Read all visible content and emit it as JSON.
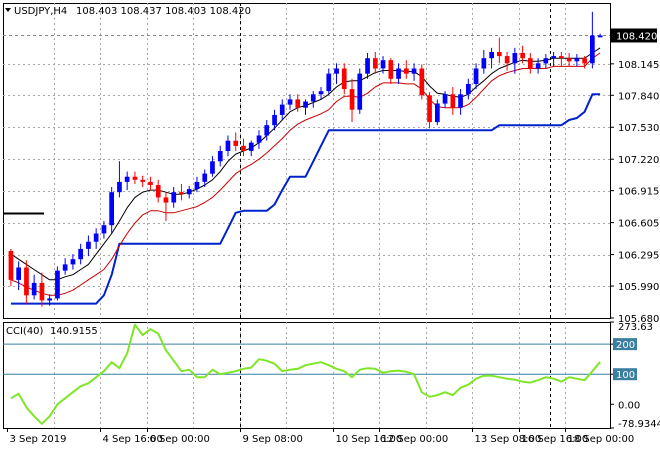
{
  "header": {
    "symbol_timeframe": "USDJPY,H4",
    "ohlc": "108.403 108.437 108.403 108.420"
  },
  "indicator": {
    "label": "CCI(40)",
    "value": "140.9155"
  },
  "colors": {
    "bull": "#0000ff",
    "bear": "#ff0000",
    "ma_black": "#000000",
    "ma_red": "#cc0000",
    "channel": "#0022cc",
    "cci": "#7fe627",
    "level": "#3a7fa0",
    "price_box": "#000000",
    "grid": "#a8a8a8"
  },
  "chart_data": [
    {
      "type": "candlestick",
      "current_price": "108.420",
      "ylim": [
        105.68,
        108.735
      ],
      "y_ticks": [
        "108.420",
        "108.145",
        "107.840",
        "107.530",
        "107.220",
        "106.915",
        "106.605",
        "106.295",
        "105.990",
        "105.680"
      ],
      "x_ticks": [
        "3 Sep 2019",
        "4 Sep 16:00",
        "6 Sep 00:00",
        "9 Sep 08:00",
        "10 Sep 16:00",
        "12 Sep 00:00",
        "13 Sep 08:00",
        "16 Sep 16:00",
        "18 Sep 00:00"
      ],
      "candles": [
        [
          106.33,
          106.35,
          105.99,
          106.05
        ],
        [
          106.05,
          106.23,
          105.95,
          106.17
        ],
        [
          106.17,
          106.24,
          105.82,
          105.9
        ],
        [
          105.9,
          106.1,
          105.86,
          106.02
        ],
        [
          106.02,
          106.12,
          105.79,
          105.85
        ],
        [
          105.85,
          105.91,
          105.8,
          105.87
        ],
        [
          105.87,
          106.18,
          105.85,
          106.14
        ],
        [
          106.14,
          106.26,
          106.1,
          106.2
        ],
        [
          106.2,
          106.3,
          106.15,
          106.25
        ],
        [
          106.25,
          106.4,
          106.2,
          106.35
        ],
        [
          106.35,
          106.48,
          106.28,
          106.42
        ],
        [
          106.42,
          106.55,
          106.35,
          106.5
        ],
        [
          106.5,
          106.62,
          106.45,
          106.58
        ],
        [
          106.58,
          106.95,
          106.5,
          106.9
        ],
        [
          106.9,
          107.2,
          106.85,
          107.0
        ],
        [
          107.0,
          107.1,
          106.92,
          107.05
        ],
        [
          107.05,
          107.1,
          106.98,
          107.02
        ],
        [
          107.02,
          107.06,
          106.95,
          107.0
        ],
        [
          107.0,
          107.05,
          106.92,
          106.97
        ],
        [
          106.97,
          107.02,
          106.8,
          106.85
        ],
        [
          106.85,
          106.9,
          106.62,
          106.8
        ],
        [
          106.8,
          106.95,
          106.75,
          106.9
        ],
        [
          106.9,
          106.98,
          106.82,
          106.88
        ],
        [
          106.88,
          106.96,
          106.84,
          106.93
        ],
        [
          106.93,
          107.05,
          106.9,
          107.0
        ],
        [
          107.0,
          107.12,
          106.95,
          107.08
        ],
        [
          107.08,
          107.25,
          107.05,
          107.2
        ],
        [
          107.2,
          107.35,
          107.15,
          107.3
        ],
        [
          107.3,
          107.45,
          107.25,
          107.4
        ],
        [
          107.4,
          107.48,
          107.3,
          107.35
        ],
        [
          107.35,
          107.42,
          107.25,
          107.3
        ],
        [
          107.3,
          107.4,
          107.25,
          107.38
        ],
        [
          107.38,
          107.5,
          107.32,
          107.45
        ],
        [
          107.45,
          107.6,
          107.4,
          107.55
        ],
        [
          107.55,
          107.7,
          107.5,
          107.65
        ],
        [
          107.65,
          107.8,
          107.6,
          107.75
        ],
        [
          107.75,
          107.85,
          107.7,
          107.8
        ],
        [
          107.8,
          107.85,
          107.68,
          107.72
        ],
        [
          107.72,
          107.8,
          107.65,
          107.78
        ],
        [
          107.78,
          107.88,
          107.72,
          107.85
        ],
        [
          107.85,
          107.92,
          107.8,
          107.88
        ],
        [
          107.88,
          108.1,
          107.85,
          108.05
        ],
        [
          108.05,
          108.15,
          107.95,
          108.1
        ],
        [
          108.1,
          108.15,
          107.85,
          107.9
        ],
        [
          107.9,
          108.0,
          107.58,
          107.7
        ],
        [
          107.7,
          108.1,
          107.66,
          108.05
        ],
        [
          108.05,
          108.25,
          108.0,
          108.2
        ],
        [
          108.2,
          108.26,
          108.05,
          108.1
        ],
        [
          108.1,
          108.22,
          108.05,
          108.18
        ],
        [
          108.18,
          108.2,
          107.95,
          108.0
        ],
        [
          108.0,
          108.15,
          107.95,
          108.1
        ],
        [
          108.1,
          108.18,
          108.0,
          108.05
        ],
        [
          108.05,
          108.15,
          107.98,
          108.1
        ],
        [
          108.1,
          108.14,
          107.8,
          107.84
        ],
        [
          107.84,
          107.87,
          107.52,
          107.58
        ],
        [
          107.58,
          107.8,
          107.55,
          107.76
        ],
        [
          107.76,
          107.88,
          107.72,
          107.85
        ],
        [
          107.85,
          107.92,
          107.65,
          107.72
        ],
        [
          107.72,
          107.9,
          107.65,
          107.85
        ],
        [
          107.85,
          108.0,
          107.8,
          107.95
        ],
        [
          107.95,
          108.15,
          107.9,
          108.1
        ],
        [
          108.1,
          108.28,
          108.05,
          108.2
        ],
        [
          108.2,
          108.3,
          108.1,
          108.26
        ],
        [
          108.26,
          108.4,
          108.15,
          108.22
        ],
        [
          108.22,
          108.26,
          108.08,
          108.15
        ],
        [
          108.15,
          108.3,
          108.05,
          108.25
        ],
        [
          108.25,
          108.32,
          108.15,
          108.2
        ],
        [
          108.2,
          108.25,
          108.05,
          108.1
        ],
        [
          108.1,
          108.2,
          108.05,
          108.15
        ],
        [
          108.15,
          108.24,
          108.1,
          108.2
        ],
        [
          108.2,
          108.26,
          108.12,
          108.22
        ],
        [
          108.22,
          108.26,
          108.12,
          108.2
        ],
        [
          108.2,
          108.25,
          108.12,
          108.17
        ],
        [
          108.17,
          108.24,
          108.12,
          108.2
        ],
        [
          108.2,
          108.22,
          108.1,
          108.15
        ],
        [
          108.15,
          108.65,
          108.1,
          108.42
        ],
        [
          108.403,
          108.437,
          108.403,
          108.42
        ]
      ],
      "ma_black": [
        106.3,
        106.25,
        106.2,
        106.15,
        106.1,
        106.05,
        106.05,
        106.08,
        106.1,
        106.15,
        106.2,
        106.3,
        106.4,
        106.5,
        106.62,
        106.75,
        106.85,
        106.9,
        106.92,
        106.92,
        106.9,
        106.88,
        106.88,
        106.9,
        106.93,
        106.97,
        107.02,
        107.1,
        107.2,
        107.27,
        107.3,
        107.33,
        107.38,
        107.45,
        107.52,
        107.6,
        107.68,
        107.72,
        107.74,
        107.77,
        107.8,
        107.85,
        107.92,
        107.97,
        107.98,
        107.98,
        108.02,
        108.06,
        108.08,
        108.08,
        108.08,
        108.07,
        108.07,
        108.02,
        107.93,
        107.86,
        107.85,
        107.83,
        107.82,
        107.85,
        107.92,
        107.98,
        108.05,
        108.1,
        108.13,
        108.16,
        108.18,
        108.17,
        108.17,
        108.18,
        108.2,
        108.2,
        108.2,
        108.2,
        108.2,
        108.25,
        108.3
      ],
      "ma_red": [
        106.05,
        106.02,
        105.98,
        105.95,
        105.92,
        105.9,
        105.9,
        105.92,
        105.95,
        106.0,
        106.05,
        106.1,
        106.15,
        106.25,
        106.38,
        106.5,
        106.6,
        106.68,
        106.72,
        106.72,
        106.7,
        106.7,
        106.72,
        106.74,
        106.76,
        106.8,
        106.85,
        106.92,
        107.0,
        107.08,
        107.13,
        107.17,
        107.22,
        107.28,
        107.35,
        107.42,
        107.5,
        107.56,
        107.6,
        107.63,
        107.66,
        107.7,
        107.78,
        107.83,
        107.83,
        107.82,
        107.86,
        107.92,
        107.96,
        107.96,
        107.96,
        107.95,
        107.95,
        107.9,
        107.8,
        107.73,
        107.72,
        107.72,
        107.72,
        107.75,
        107.82,
        107.9,
        107.98,
        108.03,
        108.06,
        108.08,
        108.1,
        108.1,
        108.1,
        108.1,
        108.12,
        108.12,
        108.12,
        108.12,
        108.12,
        108.2,
        108.25
      ],
      "channel": [
        105.82,
        105.82,
        105.82,
        105.82,
        105.82,
        105.82,
        105.82,
        105.82,
        105.82,
        105.82,
        105.82,
        105.82,
        105.9,
        106.1,
        106.4,
        106.4,
        106.4,
        106.4,
        106.4,
        106.4,
        106.4,
        106.4,
        106.4,
        106.4,
        106.4,
        106.4,
        106.4,
        106.4,
        106.55,
        106.7,
        106.72,
        106.72,
        106.72,
        106.72,
        106.78,
        106.92,
        107.05,
        107.05,
        107.05,
        107.2,
        107.35,
        107.5,
        107.5,
        107.5,
        107.5,
        107.5,
        107.5,
        107.5,
        107.5,
        107.5,
        107.5,
        107.5,
        107.5,
        107.5,
        107.5,
        107.5,
        107.5,
        107.5,
        107.5,
        107.5,
        107.5,
        107.5,
        107.5,
        107.55,
        107.55,
        107.55,
        107.55,
        107.55,
        107.55,
        107.55,
        107.55,
        107.55,
        107.6,
        107.62,
        107.68,
        107.85,
        107.85
      ]
    },
    {
      "type": "line",
      "ylim": [
        -78.9344,
        273.63
      ],
      "y_ticks": [
        "273.63",
        "200",
        "100",
        "0.00",
        "-78.9344"
      ],
      "levels": [
        200,
        100
      ],
      "values": [
        20,
        35,
        -10,
        -40,
        -65,
        -40,
        0,
        20,
        40,
        60,
        70,
        90,
        110,
        140,
        120,
        170,
        265,
        230,
        250,
        235,
        180,
        145,
        110,
        115,
        90,
        90,
        115,
        100,
        105,
        110,
        118,
        122,
        150,
        145,
        135,
        110,
        115,
        118,
        130,
        135,
        140,
        130,
        118,
        110,
        90,
        115,
        120,
        118,
        105,
        110,
        112,
        108,
        100,
        40,
        25,
        30,
        40,
        30,
        55,
        65,
        85,
        95,
        95,
        90,
        85,
        82,
        75,
        72,
        80,
        90,
        85,
        75,
        90,
        85,
        80,
        110,
        141
      ]
    }
  ]
}
